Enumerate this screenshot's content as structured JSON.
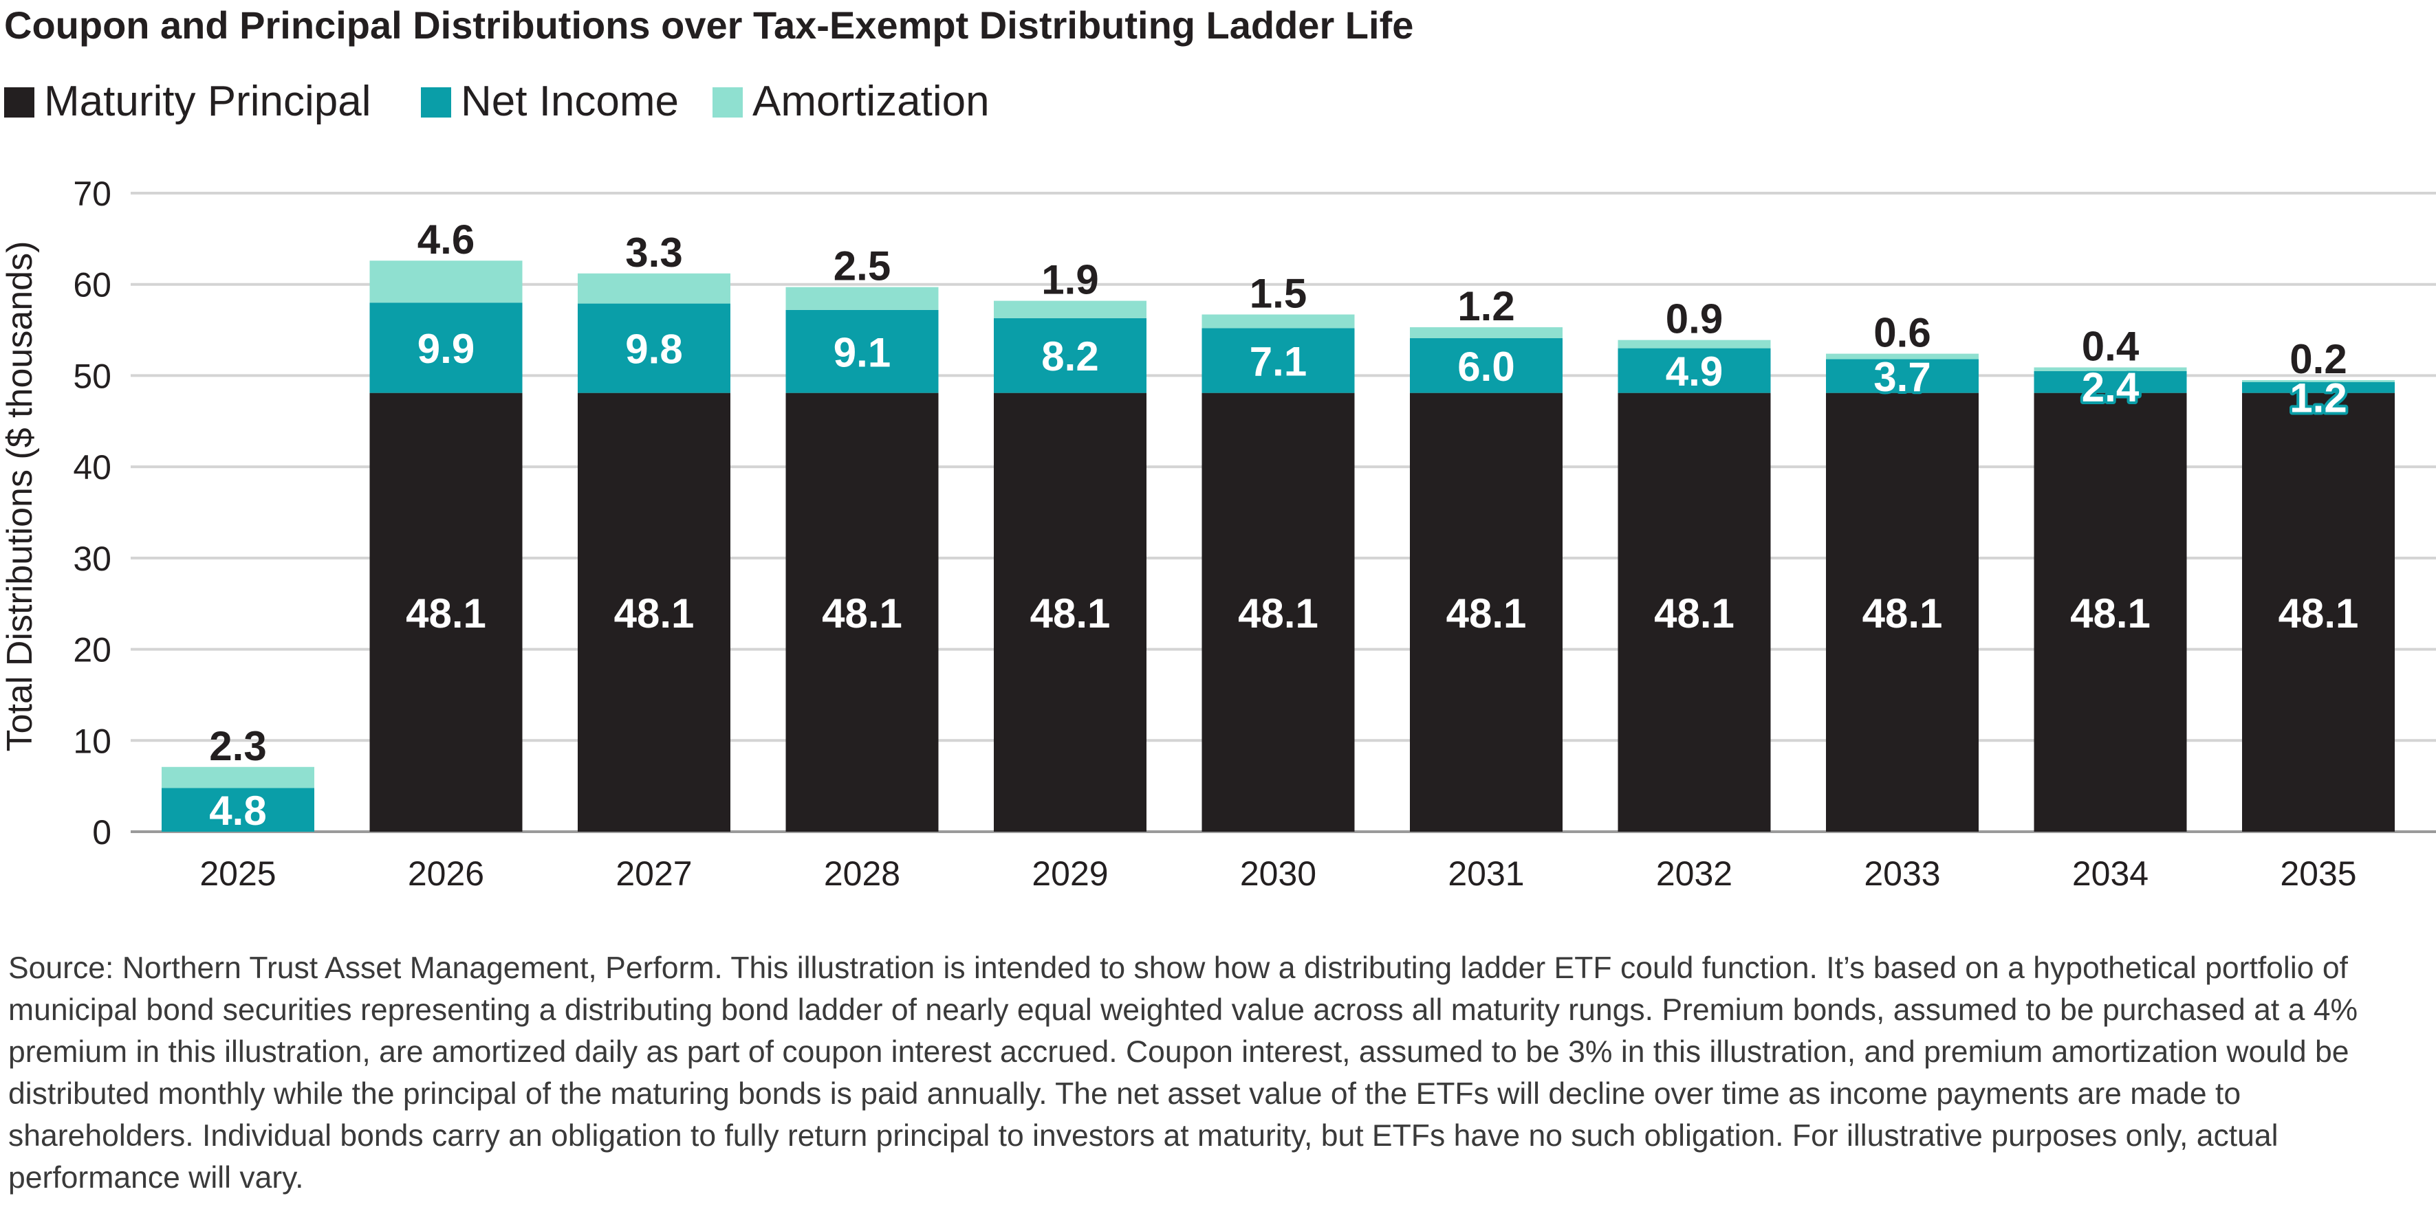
{
  "chart_data": {
    "type": "bar",
    "stacked": true,
    "title": "Coupon and Principal Distributions over Tax-Exempt Distributing Ladder Life",
    "xlabel": "",
    "ylabel": "Total Distributions ($ thousands)",
    "ylim": [
      0,
      70
    ],
    "yticks": [
      0,
      10,
      20,
      30,
      40,
      50,
      60,
      70
    ],
    "grid": true,
    "legend_position": "top-left",
    "categories": [
      "2025",
      "2026",
      "2027",
      "2028",
      "2029",
      "2030",
      "2031",
      "2032",
      "2033",
      "2034",
      "2035"
    ],
    "series": [
      {
        "name": "Maturity Principal",
        "color": "#231f20",
        "values": [
          0,
          48.1,
          48.1,
          48.1,
          48.1,
          48.1,
          48.1,
          48.1,
          48.1,
          48.1,
          48.1
        ],
        "labels": [
          "",
          "48.1",
          "48.1",
          "48.1",
          "48.1",
          "48.1",
          "48.1",
          "48.1",
          "48.1",
          "48.1",
          "48.1"
        ]
      },
      {
        "name": "Net Income",
        "color": "#0a9ea8",
        "values": [
          4.8,
          9.9,
          9.8,
          9.1,
          8.2,
          7.1,
          6.0,
          4.9,
          3.7,
          2.4,
          1.2
        ],
        "labels": [
          "4.8",
          "9.9",
          "9.8",
          "9.1",
          "8.2",
          "7.1",
          "6.0",
          "4.9",
          "3.7",
          "2.4",
          "1.2"
        ]
      },
      {
        "name": "Amortization",
        "color": "#8fe0d0",
        "values": [
          2.3,
          4.6,
          3.3,
          2.5,
          1.9,
          1.5,
          1.2,
          0.9,
          0.6,
          0.4,
          0.2
        ],
        "labels": [
          "2.3",
          "4.6",
          "3.3",
          "2.5",
          "1.9",
          "1.5",
          "1.2",
          "0.9",
          "0.6",
          "0.4",
          "0.2"
        ]
      }
    ]
  },
  "footnote": "Source: Northern Trust Asset Management, Perform. This illustration is intended to show how a distributing ladder ETF could function. It’s based on a hypothetical portfolio of municipal bond securities representing a distributing bond ladder of nearly equal weighted value across all maturity rungs. Premium bonds, assumed to be purchased at a 4% premium in this illustration, are amortized daily as part of coupon interest accrued. Coupon interest, assumed to be 3% in this illustration, and premium amortization would be distributed monthly while the principal of the maturing bonds is paid annually. The net asset value of the ETFs will decline over time as income payments are made to shareholders. Individual bonds carry an obligation to fully return principal to investors at maturity, but ETFs have no such obligation. For illustrative purposes only, actual performance will vary."
}
